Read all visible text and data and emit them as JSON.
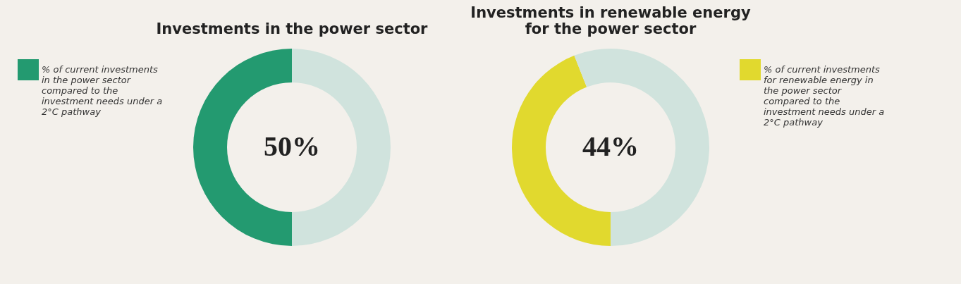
{
  "chart_data": [
    {
      "type": "donut",
      "title": "Investments in the power sector",
      "categories": [
        "% of current investments in the power sector compared to the investment needs under a 2°C pathway",
        null
      ],
      "values": [
        50,
        50
      ],
      "colors": [
        "#239a70",
        "#d0e3dd"
      ],
      "legend": "left",
      "annotations": [
        "50%"
      ]
    },
    {
      "type": "donut",
      "title": "Investments in renewable energy for the power sector",
      "categories": [
        "% of current investments for renewable energy in the power sector compared to the investment needs under a 2°C pathway",
        null
      ],
      "values": [
        44,
        56
      ],
      "colors": [
        "#e1d92e",
        "#d0e3dd"
      ],
      "legend": "right",
      "annotations": [
        "44%"
      ]
    }
  ]
}
